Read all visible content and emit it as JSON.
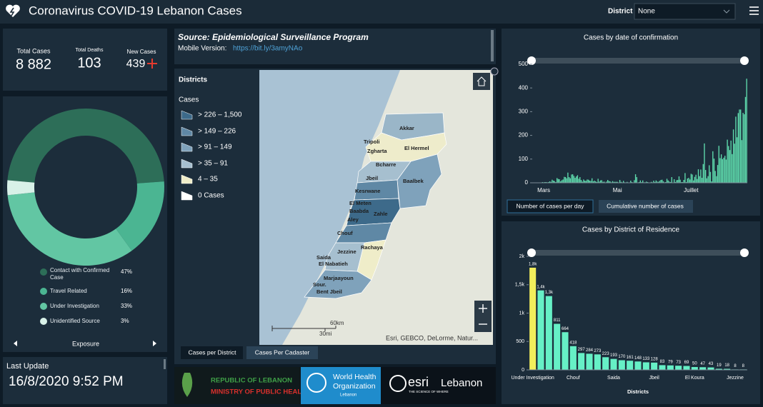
{
  "header": {
    "title": "Coronavirus COVID-19 Lebanon Cases",
    "district_label": "District",
    "district_value": "None"
  },
  "stats": {
    "total_cases": {
      "label": "Total Cases",
      "value": "8 882"
    },
    "total_deaths": {
      "label": "Total Deaths",
      "value": "103"
    },
    "new_cases": {
      "label": "New Cases",
      "value": "439"
    }
  },
  "exposure_nav": {
    "label": "Exposure"
  },
  "last_update": {
    "label": "Last Update",
    "value": "16/8/2020 9:52 PM"
  },
  "source": {
    "title": "Source: Epidemiological Surveillance Program",
    "mobile_label": "Mobile Version:",
    "mobile_link": "https://bit.ly/3amyNAo"
  },
  "map": {
    "layer_title": "Districts",
    "legend_title": "Cases",
    "legend": [
      "> 226 – 1,500",
      "> 149 – 226",
      "> 91 – 149",
      "> 35 – 91",
      "4 – 35",
      "0 Cases"
    ],
    "labels": [
      "Akkar",
      "Tripoli",
      "Zgharta",
      "El Hermel",
      "Bcharre",
      "Jbeil",
      "Baalbek",
      "Kesrwane",
      "El Meten",
      "Baabda",
      "Zahle",
      "Aley",
      "Chouf",
      "Rachaya",
      "Jezzine",
      "Saida",
      "El Nabatieh",
      "Marjaayoun",
      "Sour.",
      "Bent Jbeil"
    ],
    "scale_km": "60km",
    "scale_mi": "30mi",
    "attribution": "Esri, GEBCO, DeLorme, Natur...",
    "tabs": [
      "Cases per District",
      "Cases Per Cadaster"
    ]
  },
  "logos": {
    "moph": {
      "line1": "REPUBLIC OF LEBANON",
      "line2": "MINISTRY OF PUBLIC HEALTH"
    },
    "who": {
      "line1": "World Health",
      "line2": "Organization",
      "line3": "Lebanon"
    },
    "esri": {
      "brand": "esri",
      "region": "Lebanon",
      "tagline": "THE SCIENCE OF WHERE"
    }
  },
  "daily_toggle": [
    "Number of cases per day",
    "Cumulative number of cases"
  ],
  "chart_data": [
    {
      "type": "pie",
      "donut": true,
      "categories": [
        "Contact with Confirmed Case",
        "Travel Related",
        "Under Investigation",
        "Unidentified Source"
      ],
      "values": [
        47,
        16,
        33,
        3
      ],
      "value_labels": [
        "47%",
        "16%",
        "33%",
        "3%"
      ],
      "colors": [
        "#2d6e58",
        "#4bb592",
        "#62c6a3",
        "#d8f1e8"
      ]
    },
    {
      "type": "bar",
      "title": "Cases by  date of confirmation",
      "color": "#5fdcae",
      "grid": false,
      "ylim": [
        0,
        530
      ],
      "yticks": [
        0,
        100,
        200,
        300,
        400,
        500
      ],
      "categories": [
        null,
        null,
        null,
        null,
        null,
        null,
        null,
        null,
        null,
        "Mars",
        null,
        null,
        null,
        null,
        null,
        null,
        null,
        null,
        null,
        null,
        null,
        null,
        null,
        null,
        null,
        null,
        null,
        null,
        null,
        null,
        null,
        null,
        null,
        null,
        null,
        null,
        null,
        null,
        null,
        null,
        null,
        null,
        null,
        null,
        null,
        null,
        null,
        null,
        null,
        null,
        null,
        null,
        null,
        null,
        null,
        null,
        null,
        null,
        null,
        null,
        null,
        null,
        null,
        null,
        null,
        null,
        null,
        null,
        null,
        null,
        "Mai",
        null,
        null,
        null,
        null,
        null,
        null,
        null,
        null,
        null,
        null,
        null,
        null,
        null,
        null,
        null,
        null,
        null,
        null,
        null,
        null,
        null,
        null,
        null,
        null,
        null,
        null,
        null,
        null,
        null,
        null,
        null,
        null,
        null,
        null,
        null,
        null,
        null,
        null,
        null,
        null,
        null,
        null,
        null,
        null,
        null,
        null,
        null,
        null,
        null,
        null,
        null,
        null,
        null,
        null,
        null,
        null,
        null,
        null,
        null,
        null,
        "Juillet",
        null,
        null,
        null,
        null,
        null,
        null,
        null,
        null,
        null,
        null,
        null,
        null,
        null,
        null,
        null,
        null,
        null,
        null,
        null,
        null,
        null,
        null,
        null,
        null,
        null,
        null,
        null,
        null,
        null,
        null,
        null,
        null,
        null,
        null,
        null,
        null,
        null,
        null,
        null,
        null,
        null,
        null,
        null,
        null,
        null,
        null
      ],
      "values": [
        1,
        0,
        0,
        0,
        1,
        0,
        1,
        0,
        3,
        2,
        3,
        3,
        2,
        3,
        6,
        4,
        13,
        9,
        7,
        3,
        20,
        16,
        15,
        6,
        11,
        14,
        25,
        24,
        19,
        43,
        24,
        19,
        35,
        36,
        29,
        21,
        27,
        32,
        17,
        24,
        12,
        5,
        14,
        9,
        8,
        14,
        13,
        9,
        8,
        19,
        6,
        9,
        6,
        3,
        17,
        5,
        10,
        11,
        4,
        5,
        1,
        5,
        12,
        7,
        6,
        2,
        7,
        4,
        4,
        4,
        4,
        0,
        12,
        4,
        2,
        8,
        2,
        1,
        4,
        1,
        0,
        9,
        3,
        0,
        11,
        36,
        24,
        0,
        3,
        10,
        3,
        10,
        2,
        2,
        5,
        3,
        1,
        1,
        4,
        2,
        9,
        3,
        10,
        5,
        4,
        8,
        12,
        13,
        6,
        2,
        3,
        17,
        10,
        5,
        3,
        24,
        0,
        15,
        3,
        11,
        12,
        27,
        13,
        3,
        3,
        12,
        41,
        3,
        18,
        21,
        14,
        38,
        35,
        10,
        25,
        34,
        16,
        57,
        28,
        56,
        21,
        79,
        166,
        54,
        19,
        28,
        74,
        46,
        6,
        133,
        102,
        50,
        28,
        75,
        156,
        104,
        120,
        100,
        106,
        114,
        98,
        182,
        155,
        138,
        178,
        121,
        225,
        165,
        279,
        192,
        294,
        309,
        309,
        180,
        295,
        289,
        362,
        439
      ]
    },
    {
      "type": "bar",
      "title": "Cases by District of Residence",
      "xlabel": "Districts",
      "grid": false,
      "ylim": [
        0,
        2000
      ],
      "yticks": [
        0,
        500,
        {
          "value": 1000,
          "label": "1k"
        },
        {
          "value": 1500,
          "label": "1,5k"
        },
        {
          "value": 2000,
          "label": "2k"
        }
      ],
      "categories": [
        "Under Investigation",
        null,
        null,
        null,
        null,
        "Chouf",
        null,
        null,
        null,
        null,
        "Saida",
        null,
        null,
        null,
        null,
        "Jbeil",
        null,
        null,
        null,
        null,
        "El Koura",
        null,
        null,
        null,
        null,
        "Jezzine",
        null
      ],
      "values": [
        1800,
        1400,
        1300,
        811,
        664,
        418,
        297,
        284,
        273,
        223,
        193,
        170,
        161,
        148,
        133,
        128,
        83,
        79,
        73,
        69,
        50,
        47,
        43,
        19,
        18,
        8,
        8
      ],
      "value_labels": [
        "1,8k",
        "1,4k",
        "1,3k",
        "811",
        "664",
        "418",
        "297",
        "284",
        "273",
        "223",
        "193",
        "170",
        "161",
        "148",
        "133",
        "128",
        "83",
        "79",
        "73",
        "69",
        "50",
        "47",
        "43",
        "19",
        "18",
        "8",
        "8"
      ],
      "colors": [
        "#f2ee5b",
        "#66f0c6",
        "#66f0c6",
        "#66f0c6",
        "#66f0c6",
        "#66f0c6",
        "#66f0c6",
        "#66f0c6",
        "#66f0c6",
        "#66f0c6",
        "#66f0c6",
        "#66f0c6",
        "#66f0c6",
        "#66f0c6",
        "#66f0c6",
        "#66f0c6",
        "#66f0c6",
        "#66f0c6",
        "#66f0c6",
        "#66f0c6",
        "#66f0c6",
        "#66f0c6",
        "#66f0c6",
        "#66f0c6",
        "#66f0c6",
        "#66f0c6",
        "#66f0c6"
      ]
    }
  ]
}
